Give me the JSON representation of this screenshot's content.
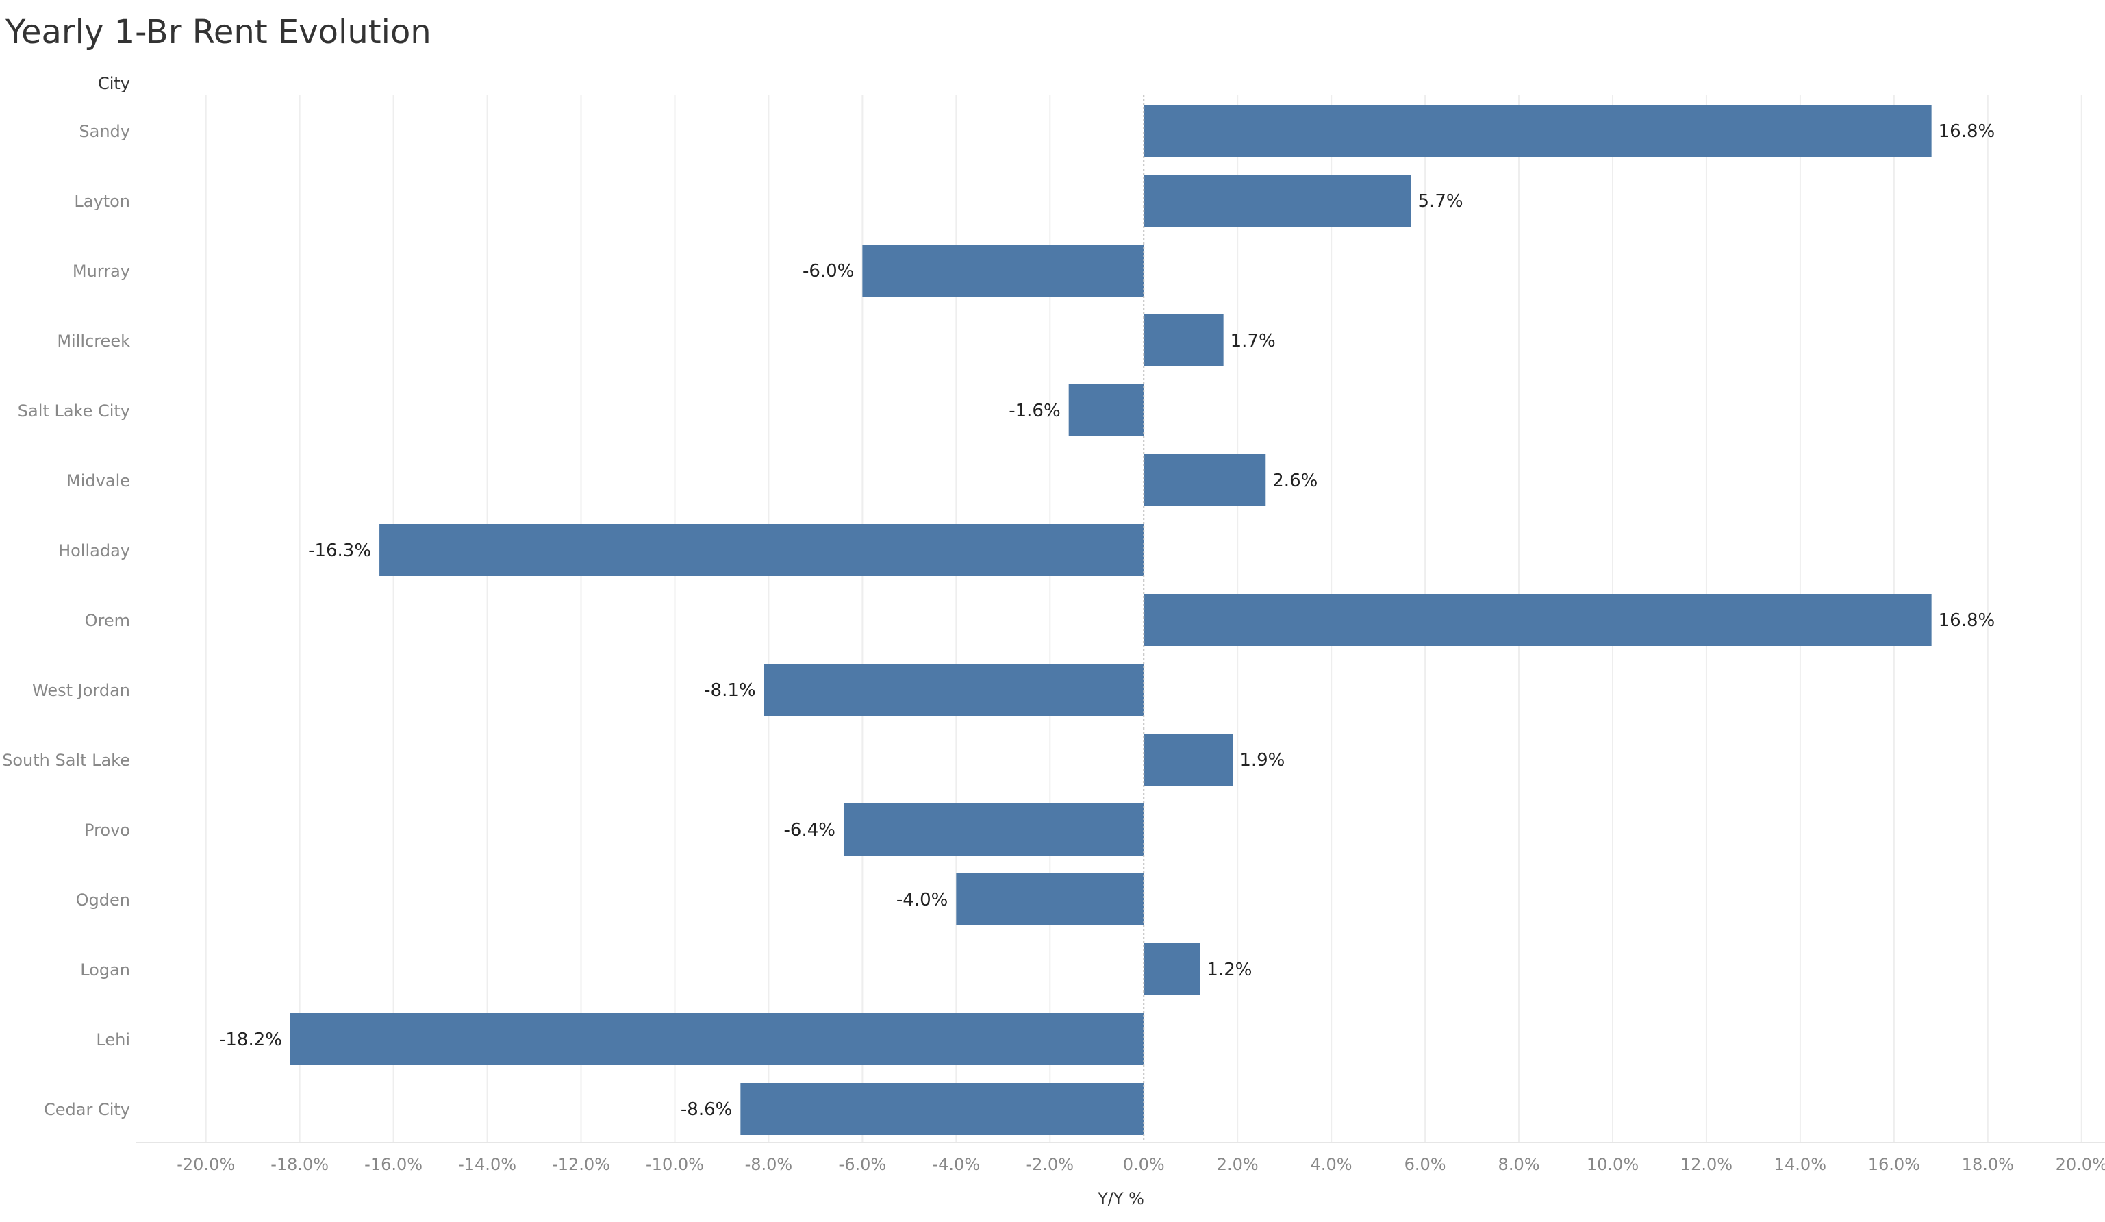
{
  "chart_data": {
    "type": "bar",
    "orientation": "horizontal",
    "title": "Yearly 1-Br Rent Evolution",
    "category_axis_title": "City",
    "xlabel": "Y/Y %",
    "categories": [
      "Sandy",
      "Layton",
      "Murray",
      "Millcreek",
      "Salt Lake City",
      "Midvale",
      "Holladay",
      "Orem",
      "West Jordan",
      "South Salt Lake",
      "Provo",
      "Ogden",
      "Logan",
      "Lehi",
      "Cedar City"
    ],
    "values": [
      16.8,
      5.7,
      -6.0,
      1.7,
      -1.6,
      2.6,
      -16.3,
      16.8,
      -8.1,
      1.9,
      -6.4,
      -4.0,
      1.2,
      -18.2,
      -8.6
    ],
    "value_labels": [
      "16.8%",
      "5.7%",
      "-6.0%",
      "1.7%",
      "-1.6%",
      "2.6%",
      "-16.3%",
      "16.8%",
      "-8.1%",
      "1.9%",
      "-6.4%",
      "-4.0%",
      "1.2%",
      "-18.2%",
      "-8.6%"
    ],
    "xlim": [
      -21.5,
      20.5
    ],
    "x_ticks": [
      -20,
      -18,
      -16,
      -14,
      -12,
      -10,
      -8,
      -6,
      -4,
      -2,
      0,
      2,
      4,
      6,
      8,
      10,
      12,
      14,
      16,
      18,
      20
    ],
    "x_tick_labels": [
      "-20.0%",
      "-18.0%",
      "-16.0%",
      "-14.0%",
      "-12.0%",
      "-10.0%",
      "-8.0%",
      "-6.0%",
      "-4.0%",
      "-2.0%",
      "0.0%",
      "2.0%",
      "4.0%",
      "6.0%",
      "8.0%",
      "10.0%",
      "12.0%",
      "14.0%",
      "16.0%",
      "18.0%",
      "20.0%"
    ],
    "grid": true,
    "legend": "none",
    "colors": {
      "bar": "#4e79a7",
      "gridline": "#eeeeee",
      "zero_line": "#bbbbbb",
      "axis_text": "#888888",
      "label_text": "#222222",
      "title_text": "#333333"
    }
  }
}
